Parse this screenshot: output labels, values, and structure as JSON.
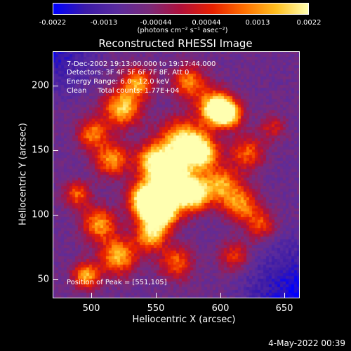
{
  "colorbar": {
    "ticks": [
      "-0.0022",
      "-0.0013",
      "-0.00044",
      "0.00044",
      "0.0013",
      "0.0022"
    ],
    "units": "(photons cm⁻² s⁻¹ asec⁻²)"
  },
  "title": "Reconstructed RHESSI Image",
  "info": {
    "time": "7-Dec-2002 19:13:00.000 to 19:17:44.000",
    "detectors": "Detectors: 3F 4F 5F 6F 7F 8F, Att 0",
    "energy": "Energy Range: 6.0 - 12.0 keV",
    "clean": "Clean     Total counts: 1.77E+04",
    "peak": "Position of Peak = [551,105]"
  },
  "axes": {
    "xlabel": "Heliocentric X (arcsec)",
    "ylabel": "Heliocentric Y (arcsec)",
    "xticks": [
      "500",
      "550",
      "600",
      "650"
    ],
    "yticks": [
      "200",
      "150",
      "100",
      "50"
    ],
    "xrange": [
      470,
      662
    ],
    "yrange": [
      36,
      228
    ]
  },
  "timestamp": "4-May-2022 00:39",
  "colors": {
    "background": "#000000",
    "colormap": [
      "#0000ff",
      "#3b1aa8",
      "#5a2b9e",
      "#7a2a7a",
      "#b0103a",
      "#e82000",
      "#ff7000",
      "#ffc020",
      "#ffffb0"
    ]
  }
}
